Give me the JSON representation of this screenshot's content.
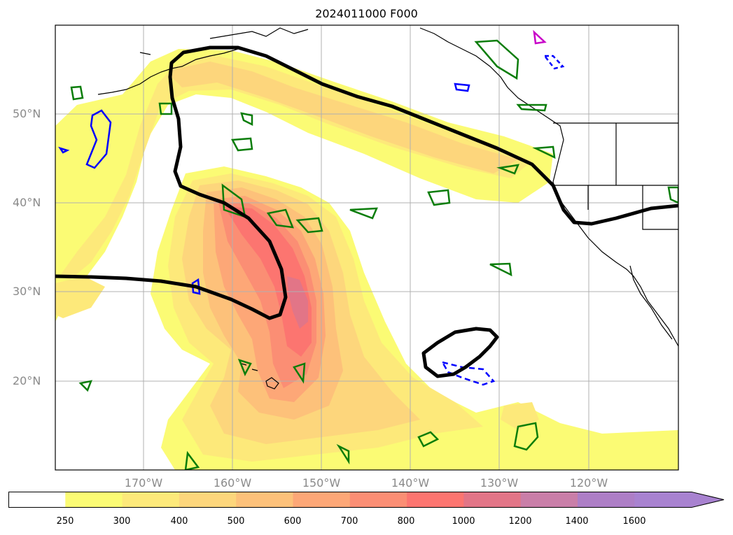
{
  "title": "2024011000 F000",
  "lat_labels": [
    "50°N",
    "40°N",
    "30°N",
    "20°N"
  ],
  "lon_labels": [
    "170°W",
    "160°W",
    "150°W",
    "140°W",
    "130°W",
    "120°W"
  ],
  "colorbar": {
    "ticks": [
      "250",
      "300",
      "400",
      "500",
      "600",
      "700",
      "800",
      "1000",
      "1200",
      "1400",
      "1600"
    ],
    "colors": [
      "#ffffff",
      "#fbfb74",
      "#fde97a",
      "#fdd67c",
      "#fdc17a",
      "#fda777",
      "#fb8e74",
      "#fc7570",
      "#e27587",
      "#c97ea8",
      "#ad7ec6",
      "#a882d0"
    ]
  },
  "colors": {
    "low": "#fbfb74",
    "mid": "#fdc17a",
    "high": "#fa7f72",
    "peak": "#e27587",
    "jet_contour": "#000000",
    "green_contour": "#0a7d0a",
    "blue_contour": "#0000ff",
    "magenta_contour": "#c800c8"
  }
}
